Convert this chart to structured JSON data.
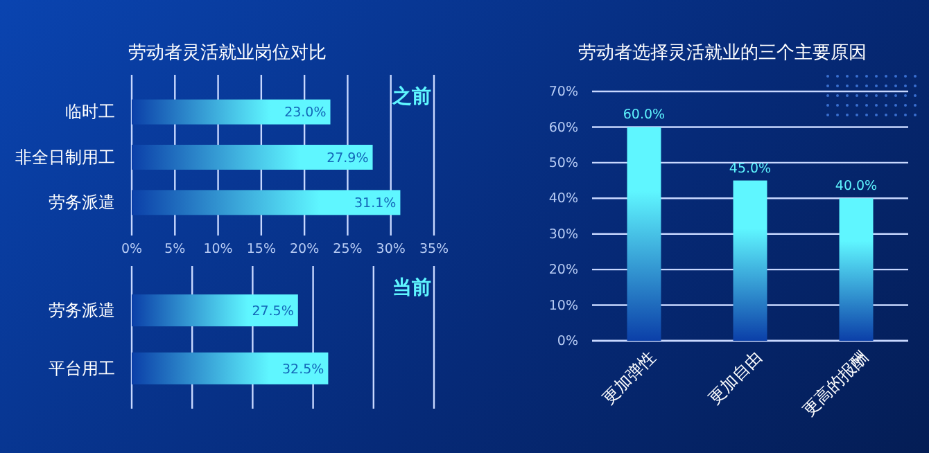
{
  "chart_data": [
    {
      "type": "bar",
      "title": "劳动者灵活就业岗位对比",
      "orientation": "horizontal",
      "annotations": [
        "之前"
      ],
      "categories": [
        "临时工",
        "非全日制用工",
        "劳务派遣"
      ],
      "values": [
        23.0,
        27.9,
        31.1
      ],
      "value_labels": [
        "23.0%",
        "27.9%",
        "31.1%"
      ],
      "color": "#5ff6ff",
      "xlim": [
        0,
        35
      ],
      "xticks": [
        {
          "value": 0,
          "label": "0%"
        },
        {
          "value": 5,
          "label": "5%"
        },
        {
          "value": 10,
          "label": "10%"
        },
        {
          "value": 15,
          "label": "15%"
        },
        {
          "value": 20,
          "label": "20%"
        },
        {
          "value": 25,
          "label": "25%"
        },
        {
          "value": 30,
          "label": "30%"
        },
        {
          "value": 35,
          "label": "35%"
        }
      ],
      "grid": "x"
    },
    {
      "type": "bar",
      "orientation": "horizontal",
      "annotations": [
        "当前"
      ],
      "categories": [
        "劳务派遣",
        "平台用工"
      ],
      "values": [
        27.5,
        32.5
      ],
      "value_labels": [
        "27.5%",
        "32.5%"
      ],
      "color": "#5ff6ff",
      "xlim": [
        0,
        50
      ],
      "xticks": [
        {
          "value": 0,
          "label": null
        },
        {
          "value": 10,
          "label": null
        },
        {
          "value": 20,
          "label": null
        },
        {
          "value": 30,
          "label": null
        },
        {
          "value": 40,
          "label": null
        },
        {
          "value": 50,
          "label": null
        }
      ],
      "grid": "x",
      "tick_labels": "y"
    },
    {
      "type": "bar",
      "title": "劳动者选择灵活就业的三个主要原因",
      "categories": [
        "更加弹性",
        "更加自由",
        "更高的报酬"
      ],
      "values": [
        60.0,
        45.0,
        40.0
      ],
      "value_labels": [
        "60.0%",
        "45.0%",
        "40.0%"
      ],
      "color": "#5ff6ff",
      "ylim": [
        0,
        70
      ],
      "yticks": [
        {
          "value": 0,
          "label": "0%"
        },
        {
          "value": 10,
          "label": "10%"
        },
        {
          "value": 20,
          "label": "20%"
        },
        {
          "value": 30,
          "label": "30%"
        },
        {
          "value": 40,
          "label": "40%"
        },
        {
          "value": 50,
          "label": "50%"
        },
        {
          "value": 60,
          "label": "60%"
        },
        {
          "value": 70,
          "label": "70%"
        }
      ],
      "grid": "y"
    }
  ]
}
